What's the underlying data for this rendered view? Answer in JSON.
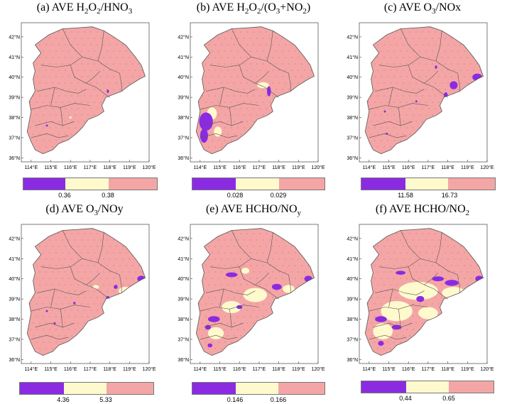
{
  "colors": {
    "low": "#8a2be2",
    "mid": "#fffacd",
    "high": "#f4a6a6",
    "border": "#555555",
    "dots": "#d26a6a"
  },
  "lat_labels": [
    "42°N",
    "41°N",
    "40°N",
    "39°N",
    "38°N",
    "37°N",
    "36°N"
  ],
  "lon_labels": [
    "114°E",
    "115°E",
    "116°E",
    "117°E",
    "118°E",
    "119°E",
    "120°E"
  ],
  "panels": [
    {
      "id": "a",
      "title_pre": "(a) AVE H",
      "title_parts": [
        [
          "(a) AVE H",
          ""
        ],
        [
          "2",
          "sub"
        ],
        [
          "O",
          ""
        ],
        [
          "2",
          "sub"
        ],
        [
          "/HNO",
          ""
        ],
        [
          "3",
          "sub"
        ]
      ],
      "ticks": [
        "0.36",
        "0.38"
      ]
    },
    {
      "id": "b",
      "title_parts": [
        [
          "(b) AVE H",
          ""
        ],
        [
          "2",
          "sub"
        ],
        [
          "O",
          ""
        ],
        [
          "2",
          "sub"
        ],
        [
          "/(O",
          ""
        ],
        [
          "3",
          "sub"
        ],
        [
          "+NO",
          ""
        ],
        [
          "2",
          "sub"
        ],
        [
          ")",
          ""
        ]
      ],
      "ticks": [
        "0.028",
        "0.029"
      ]
    },
    {
      "id": "c",
      "title_parts": [
        [
          "(c) AVE O",
          ""
        ],
        [
          "3",
          "sub"
        ],
        [
          "/NOx",
          ""
        ]
      ],
      "ticks": [
        "11.58",
        "16.73"
      ]
    },
    {
      "id": "d",
      "title_parts": [
        [
          "(d) AVE O",
          ""
        ],
        [
          "3",
          "sub"
        ],
        [
          "/NOy",
          ""
        ]
      ],
      "ticks": [
        "4.36",
        "5.33"
      ]
    },
    {
      "id": "e",
      "title_parts": [
        [
          "(e) AVE HCHO/NO",
          ""
        ],
        [
          "y",
          "sub"
        ]
      ],
      "ticks": [
        "0.146",
        "0.166"
      ]
    },
    {
      "id": "f",
      "title_parts": [
        [
          "(f) AVE HCHO/NO",
          ""
        ],
        [
          "2",
          "sub"
        ]
      ],
      "ticks": [
        "0.44",
        "0.65"
      ]
    }
  ]
}
